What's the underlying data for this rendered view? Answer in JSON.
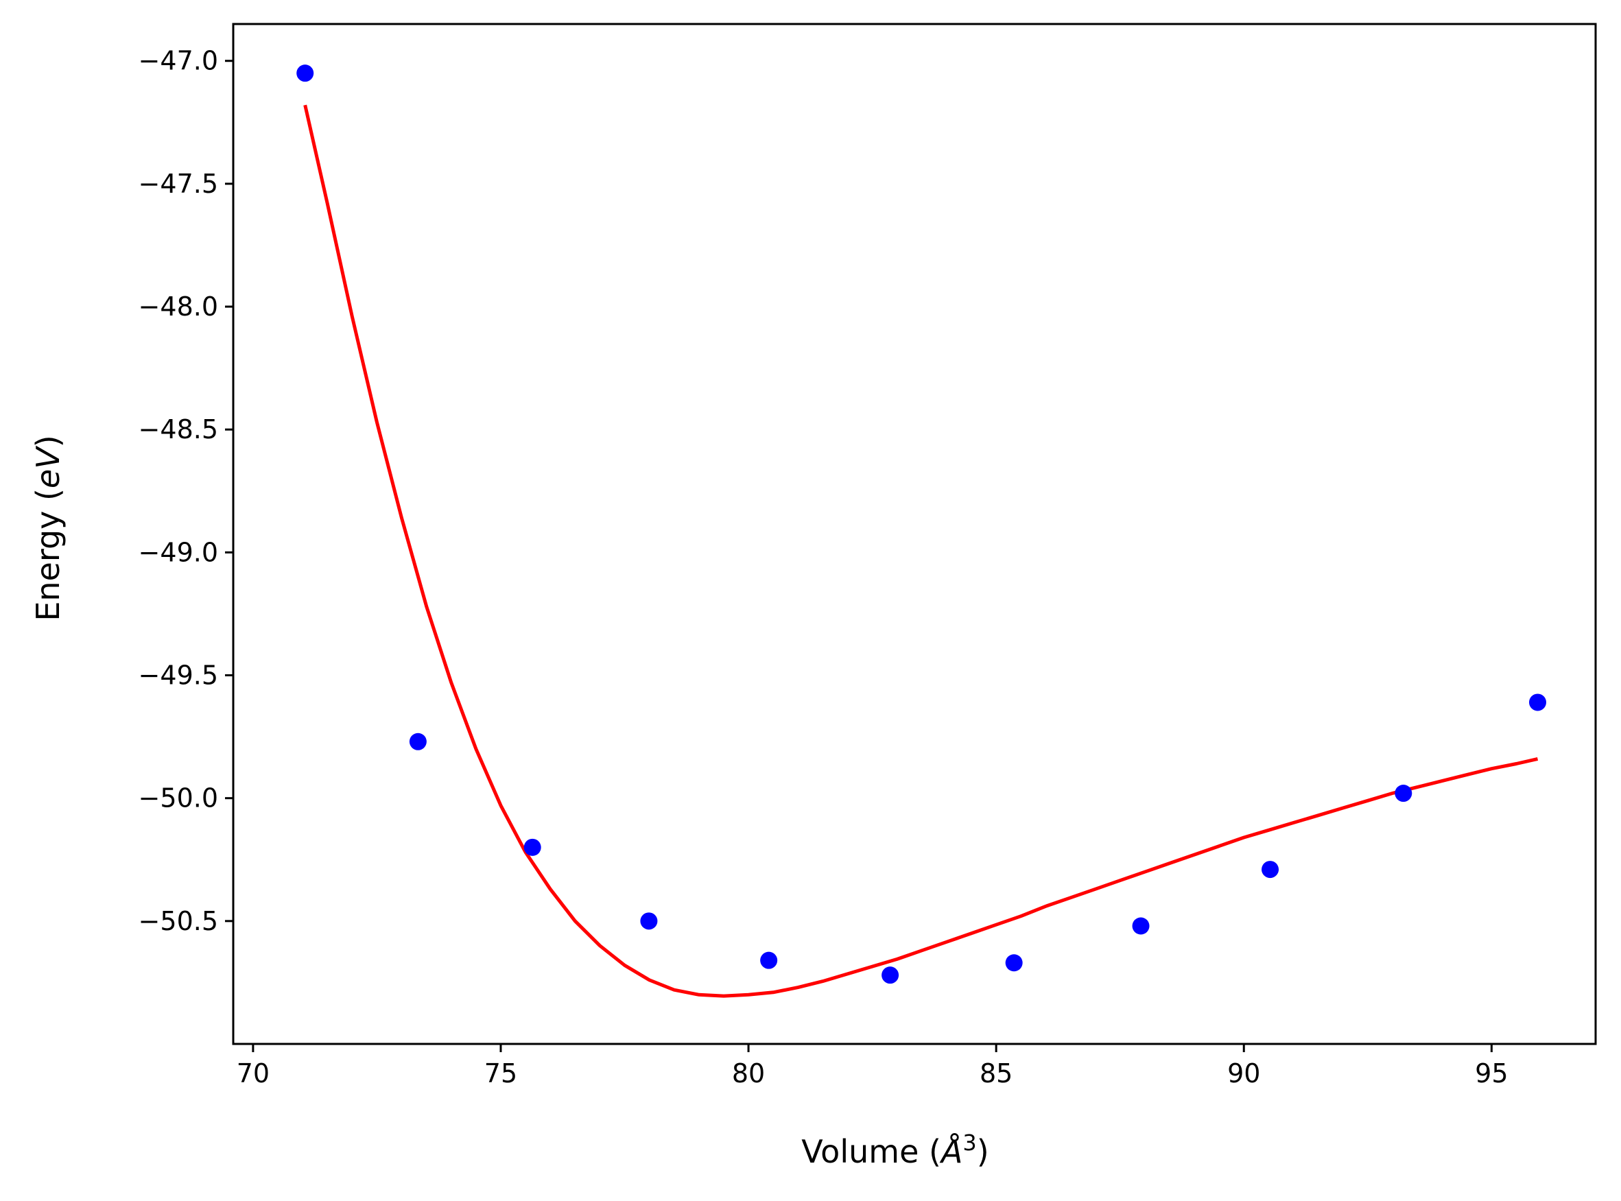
{
  "chart_data": {
    "type": "scatter",
    "title": "",
    "xlabel": {
      "prefix": "Volume (",
      "symbol": "Å",
      "sup": "3",
      "suffix": ")"
    },
    "ylabel": {
      "prefix": "Energy (",
      "symbol": "eV",
      "suffix": ")"
    },
    "xlim": [
      69.6,
      97.1
    ],
    "ylim": [
      -51.0,
      -46.85
    ],
    "x_ticks": [
      70,
      75,
      80,
      85,
      90,
      95
    ],
    "x_tick_labels": [
      "70",
      "75",
      "80",
      "85",
      "90",
      "95"
    ],
    "y_ticks": [
      -47.0,
      -47.5,
      -48.0,
      -48.5,
      -49.0,
      -49.5,
      -50.0,
      -50.5
    ],
    "y_tick_labels": [
      "−47.0",
      "−47.5",
      "−48.0",
      "−48.5",
      "−49.0",
      "−49.5",
      "−50.0",
      "−50.5"
    ],
    "grid": false,
    "colors": {
      "points": "#0000ff",
      "fit": "#ff0000",
      "axes": "#000000"
    },
    "series": [
      {
        "kind": "points",
        "x": [
          71.05,
          73.33,
          75.64,
          77.99,
          80.41,
          82.86,
          85.36,
          87.92,
          90.53,
          93.22,
          95.93
        ],
        "y": [
          -47.05,
          -49.77,
          -50.2,
          -50.5,
          -50.66,
          -50.72,
          -50.67,
          -50.52,
          -50.29,
          -49.98,
          -49.61
        ]
      },
      {
        "kind": "fit-curve",
        "x": [
          71.05,
          71.5,
          72.0,
          72.5,
          73.0,
          73.5,
          74.0,
          74.5,
          75.0,
          75.5,
          76.0,
          76.5,
          77.0,
          77.5,
          78.0,
          78.5,
          79.0,
          79.5,
          80.0,
          80.5,
          81.0,
          81.5,
          82.0,
          82.5,
          83.0,
          83.5,
          84.0,
          84.5,
          85.0,
          85.5,
          86.0,
          86.5,
          87.0,
          87.5,
          88.0,
          88.5,
          89.0,
          89.5,
          90.0,
          90.5,
          91.0,
          91.5,
          92.0,
          92.5,
          93.0,
          93.5,
          94.0,
          94.5,
          95.0,
          95.5,
          95.93
        ],
        "y": [
          -47.18,
          -47.58,
          -48.04,
          -48.47,
          -48.86,
          -49.22,
          -49.53,
          -49.8,
          -50.03,
          -50.22,
          -50.37,
          -50.5,
          -50.6,
          -50.68,
          -50.74,
          -50.78,
          -50.8,
          -50.805,
          -50.8,
          -50.79,
          -50.77,
          -50.745,
          -50.715,
          -50.685,
          -50.655,
          -50.62,
          -50.585,
          -50.55,
          -50.515,
          -50.48,
          -50.44,
          -50.405,
          -50.37,
          -50.335,
          -50.3,
          -50.265,
          -50.23,
          -50.195,
          -50.16,
          -50.13,
          -50.1,
          -50.07,
          -50.04,
          -50.01,
          -49.98,
          -49.955,
          -49.93,
          -49.905,
          -49.88,
          -49.86,
          -49.84
        ]
      }
    ]
  }
}
